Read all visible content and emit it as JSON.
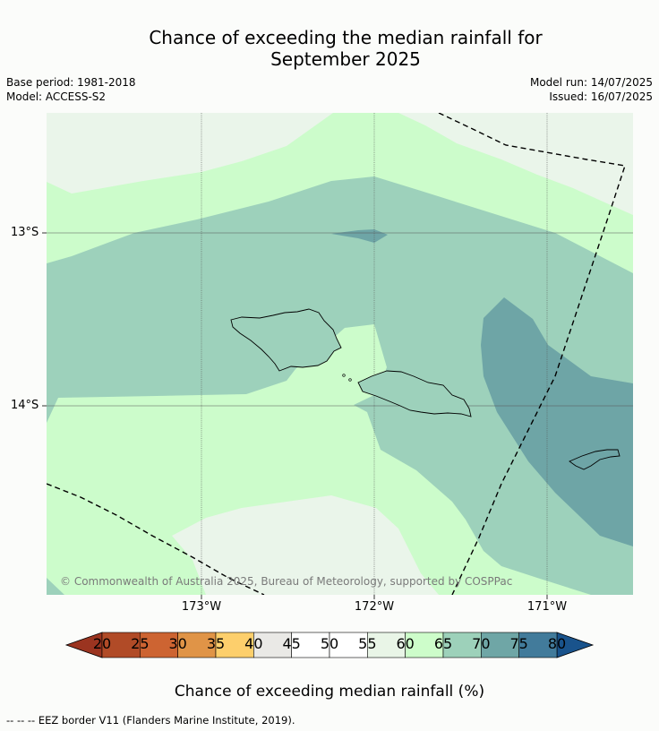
{
  "title_line1": "Chance of exceeding the median rainfall for",
  "title_line2": "September 2025",
  "base_period": "Base period: 1981-2018",
  "model": "Model: ACCESS-S2",
  "model_run": "Model run: 14/07/2025",
  "issued": "Issued: 16/07/2025",
  "lat_labels": [
    "13°S",
    "14°S"
  ],
  "lon_labels": [
    "173°W",
    "172°W",
    "171°W"
  ],
  "copyright": "© Commonwealth of Australia 2025, Bureau of Meteorology, supported by COSPPac",
  "colorbar": {
    "ticks": [
      "20",
      "25",
      "30",
      "35",
      "40",
      "45",
      "50",
      "55",
      "60",
      "65",
      "70",
      "75",
      "80"
    ],
    "colors": [
      "#b14b27",
      "#cd6432",
      "#e09447",
      "#fdcf6c",
      "#eae9e6",
      "#ffffff",
      "#ffffff",
      "#e9f5e7",
      "#cdfdca",
      "#9dd1ba",
      "#6fa6a6",
      "#427b9b"
    ],
    "under_color": "#9b3420",
    "over_color": "#19538c",
    "title": "Chance of exceeding median rainfall (%)"
  },
  "map_colors": {
    "c55_60": "#eaf5ea",
    "c60_65": "#ccfccb",
    "c65_70": "#9dd1bb",
    "c70_75": "#6ea5a6"
  },
  "footer": "-- -- -- EEZ border V11 (Flanders Marine Institute, 2019)."
}
